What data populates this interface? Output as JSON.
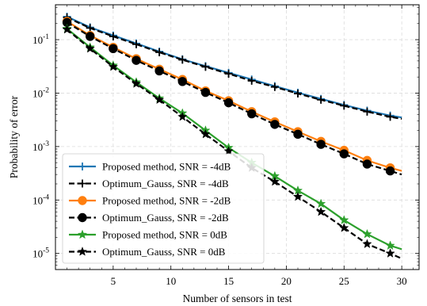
{
  "chart_data": {
    "type": "line",
    "title": "",
    "xlabel": "Number of sensors in test",
    "ylabel": "Probability of error",
    "xlim": [
      0,
      31.5
    ],
    "ylim": [
      5e-06,
      0.45
    ],
    "yscale": "log",
    "grid": true,
    "legend_position": "lower-left",
    "x_ticks": [
      5,
      10,
      15,
      20,
      25,
      30
    ],
    "y_ticks": [
      1e-05,
      0.0001,
      0.001,
      0.01,
      0.1
    ],
    "y_tick_labels": [
      {
        "base": "10",
        "exp": "-5"
      },
      {
        "base": "10",
        "exp": "-4"
      },
      {
        "base": "10",
        "exp": "-3"
      },
      {
        "base": "10",
        "exp": "-2"
      },
      {
        "base": "10",
        "exp": "-1"
      }
    ],
    "x": [
      1,
      3,
      5,
      7,
      9,
      11,
      13,
      15,
      17,
      19,
      21,
      23,
      25,
      27,
      29,
      30
    ],
    "series": [
      {
        "name": "Proposed method, SNR = -4dB",
        "color": "#1f77b4",
        "marker": "plus",
        "linestyle": "solid",
        "values": [
          0.27,
          0.17,
          0.12,
          0.085,
          0.06,
          0.043,
          0.032,
          0.024,
          0.018,
          0.0135,
          0.0102,
          0.0078,
          0.006,
          0.0047,
          0.0038,
          0.0035
        ]
      },
      {
        "name": "Optimum_Gauss, SNR = -4dB",
        "color": "#000000",
        "marker": "plus",
        "linestyle": "dashed",
        "values": [
          0.26,
          0.165,
          0.115,
          0.082,
          0.058,
          0.042,
          0.031,
          0.023,
          0.017,
          0.013,
          0.0098,
          0.0075,
          0.0058,
          0.0045,
          0.0036,
          0.0033
        ]
      },
      {
        "name": "Proposed method, SNR = -2dB",
        "color": "#ff7f0e",
        "marker": "circle",
        "linestyle": "solid",
        "values": [
          0.22,
          0.12,
          0.072,
          0.044,
          0.028,
          0.018,
          0.011,
          0.0072,
          0.0045,
          0.0029,
          0.0019,
          0.00125,
          0.00085,
          0.00055,
          0.0004,
          0.00035
        ]
      },
      {
        "name": "Optimum_Gauss, SNR = -2dB",
        "color": "#000000",
        "marker": "circle",
        "linestyle": "dashed",
        "values": [
          0.21,
          0.115,
          0.068,
          0.041,
          0.026,
          0.0165,
          0.0103,
          0.0066,
          0.0041,
          0.0026,
          0.0017,
          0.0011,
          0.00073,
          0.00047,
          0.00035,
          0.0003
        ]
      },
      {
        "name": "Proposed method, SNR = 0dB",
        "color": "#2ca02c",
        "marker": "star",
        "linestyle": "solid",
        "values": [
          0.16,
          0.072,
          0.033,
          0.016,
          0.008,
          0.0042,
          0.002,
          0.00095,
          0.0005,
          0.00028,
          0.00015,
          8.5e-05,
          4.2e-05,
          2.3e-05,
          1.4e-05,
          1.2e-05
        ]
      },
      {
        "name": "Optimum_Gauss, SNR = 0dB",
        "color": "#000000",
        "marker": "star",
        "linestyle": "dashed",
        "values": [
          0.155,
          0.068,
          0.031,
          0.015,
          0.0075,
          0.0036,
          0.0017,
          0.00082,
          0.0004,
          0.00022,
          0.000115,
          6e-05,
          3e-05,
          1.5e-05,
          1e-05,
          8e-06
        ]
      }
    ]
  }
}
